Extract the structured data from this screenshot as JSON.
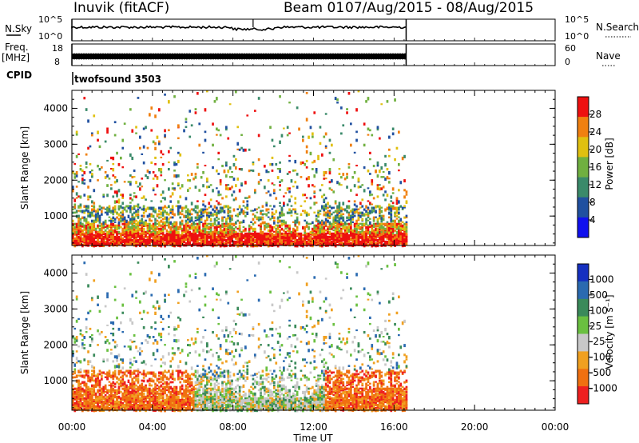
{
  "header": {
    "station": "Inuvik (fitACF)",
    "beam": "Beam 01",
    "date_range": "07/Aug/2015 - 08/Aug/2015"
  },
  "strips": {
    "nsky_label": "N.Sky",
    "nsky_ticks": [
      "10^5",
      "10^0"
    ],
    "nsearch_label": "N.Search",
    "nsearch_ticks": [
      "10^5",
      "10^0"
    ],
    "freq_label": "Freq.",
    "freq_unit": "[MHz]",
    "freq_ticks": [
      "18",
      "8"
    ],
    "nave_label": "Nave",
    "nave_ticks": [
      "60",
      "0"
    ],
    "cpid_label": "CPID",
    "cpid_value": "twofsound 3503"
  },
  "chart_data": [
    {
      "type": "heatmap",
      "name": "power",
      "ylabel": "Slant Range [km]",
      "xlabel": "Time UT",
      "xlim": [
        0,
        24
      ],
      "ylim": [
        180,
        4500
      ],
      "x_ticks": [
        "00:00",
        "04:00",
        "08:00",
        "12:00",
        "16:00",
        "20:00",
        "00:00"
      ],
      "y_ticks": [
        "1000",
        "2000",
        "3000",
        "4000"
      ],
      "colorbar_label": "Power [dB]",
      "colorbar_ticks": [
        "28",
        "24",
        "20",
        "16",
        "12",
        "8",
        "4"
      ],
      "data_end_hour": 16.6,
      "colors": [
        "#1010ee",
        "#2050a0",
        "#3a8a6a",
        "#70b040",
        "#e0c010",
        "#f08010",
        "#ee1010"
      ]
    },
    {
      "type": "heatmap",
      "name": "velocity",
      "ylabel": "Slant Range [km]",
      "xlabel": "Time UT",
      "xlim": [
        0,
        24
      ],
      "ylim": [
        180,
        4500
      ],
      "x_ticks": [
        "00:00",
        "04:00",
        "08:00",
        "12:00",
        "16:00",
        "20:00",
        "00:00"
      ],
      "y_ticks": [
        "1000",
        "2000",
        "3000",
        "4000"
      ],
      "colorbar_label": "Velocity [m s⁻¹]",
      "colorbar_ticks": [
        "1000",
        "500",
        "100",
        "25",
        "-25",
        "-100",
        "-500",
        "-1000"
      ],
      "data_end_hour": 16.6,
      "colors": [
        "#1530c0",
        "#2a6ab0",
        "#3a8a5a",
        "#6ac040",
        "#c8c8c8",
        "#f0a020",
        "#f07010",
        "#ee2020"
      ]
    }
  ]
}
